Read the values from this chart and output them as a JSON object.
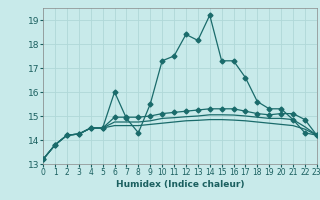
{
  "title": "",
  "xlabel": "Humidex (Indice chaleur)",
  "xlim": [
    0,
    23
  ],
  "ylim": [
    13,
    19.5
  ],
  "yticks": [
    13,
    14,
    15,
    16,
    17,
    18,
    19
  ],
  "xticks": [
    0,
    1,
    2,
    3,
    4,
    5,
    6,
    7,
    8,
    9,
    10,
    11,
    12,
    13,
    14,
    15,
    16,
    17,
    18,
    19,
    20,
    21,
    22,
    23
  ],
  "bg_color": "#c8eaea",
  "grid_color": "#b0d8d8",
  "line_color": "#1a6b6b",
  "lines": [
    {
      "x": [
        0,
        1,
        2,
        3,
        4,
        5,
        6,
        7,
        8,
        9,
        10,
        11,
        12,
        13,
        14,
        15,
        16,
        17,
        18,
        19,
        20,
        21,
        22,
        23
      ],
      "y": [
        13.2,
        13.8,
        14.2,
        14.25,
        14.5,
        14.5,
        16.0,
        14.9,
        14.3,
        15.5,
        17.3,
        17.5,
        18.4,
        18.15,
        19.2,
        17.3,
        17.3,
        16.6,
        15.6,
        15.3,
        15.3,
        14.85,
        14.3,
        14.2
      ],
      "marker": "D",
      "markersize": 2.5
    },
    {
      "x": [
        0,
        1,
        2,
        3,
        4,
        5,
        6,
        7,
        8,
        9,
        10,
        11,
        12,
        13,
        14,
        15,
        16,
        17,
        18,
        19,
        20,
        21,
        22,
        23
      ],
      "y": [
        13.2,
        13.8,
        14.2,
        14.25,
        14.5,
        14.5,
        14.95,
        14.95,
        14.95,
        15.0,
        15.1,
        15.15,
        15.2,
        15.25,
        15.3,
        15.3,
        15.3,
        15.2,
        15.1,
        15.05,
        15.1,
        15.1,
        14.85,
        14.2
      ],
      "marker": "D",
      "markersize": 2.5
    },
    {
      "x": [
        0,
        1,
        2,
        3,
        4,
        5,
        6,
        7,
        8,
        9,
        10,
        11,
        12,
        13,
        14,
        15,
        16,
        17,
        18,
        19,
        20,
        21,
        22,
        23
      ],
      "y": [
        13.2,
        13.8,
        14.2,
        14.25,
        14.5,
        14.5,
        14.6,
        14.6,
        14.6,
        14.65,
        14.7,
        14.75,
        14.8,
        14.82,
        14.85,
        14.85,
        14.83,
        14.8,
        14.75,
        14.7,
        14.65,
        14.6,
        14.45,
        14.2
      ],
      "marker": null,
      "markersize": 0
    },
    {
      "x": [
        0,
        1,
        2,
        3,
        4,
        5,
        6,
        7,
        8,
        9,
        10,
        11,
        12,
        13,
        14,
        15,
        16,
        17,
        18,
        19,
        20,
        21,
        22,
        23
      ],
      "y": [
        13.2,
        13.8,
        14.2,
        14.25,
        14.5,
        14.5,
        14.75,
        14.75,
        14.75,
        14.8,
        14.9,
        14.93,
        14.97,
        15.0,
        15.05,
        15.05,
        15.04,
        15.0,
        14.95,
        14.9,
        14.9,
        14.85,
        14.55,
        14.2
      ],
      "marker": null,
      "markersize": 0
    }
  ]
}
